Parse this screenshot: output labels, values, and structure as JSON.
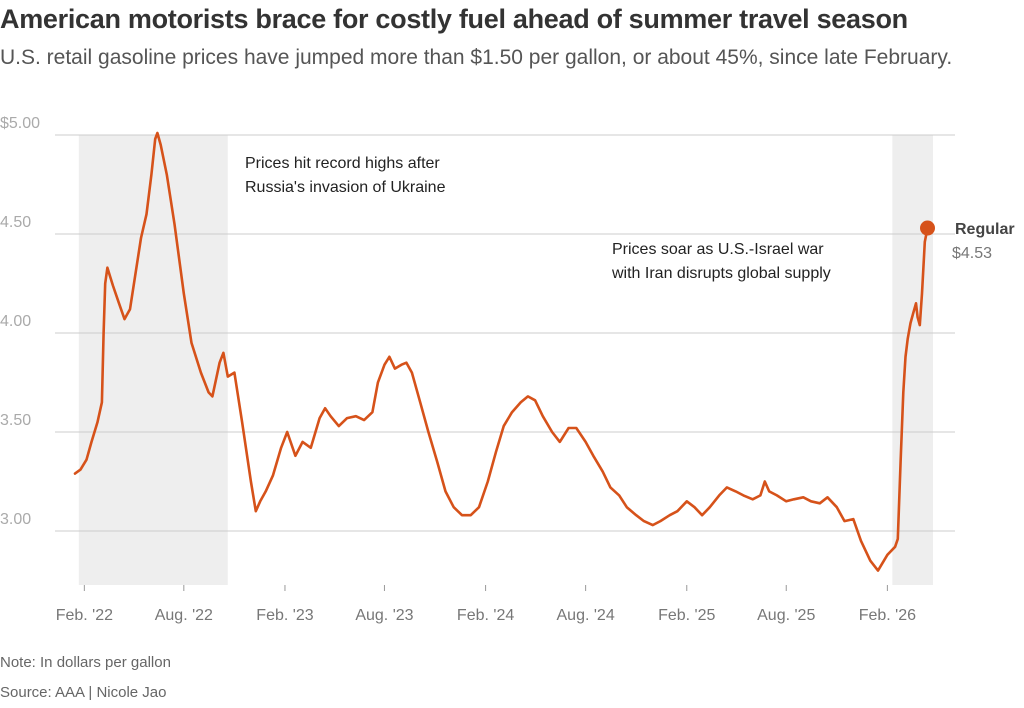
{
  "header": {
    "title": "American motorists brace for costly fuel ahead of summer travel season",
    "subtitle": "U.S. retail gasoline prices have jumped more than $1.50 per gallon, or about 45%, since late February."
  },
  "footer": {
    "note": "Note: In dollars per gallon",
    "source": "Source: AAA | Nicole Jao"
  },
  "colors": {
    "line": "#d6521a",
    "shade": "#eeeeee",
    "grid": "#cccccc"
  },
  "chart_data": {
    "type": "line",
    "title": "American motorists brace for costly fuel ahead of summer travel season",
    "ylabel": "",
    "xlabel": "",
    "unit": "dollars per gallon",
    "xlim": [
      "2022-01-15",
      "2026-04-25"
    ],
    "ylim": [
      2.8,
      5.0
    ],
    "yticks": [
      5.0,
      4.5,
      4.0,
      3.5,
      3.0
    ],
    "ytick_labels": [
      "$5.00",
      "4.50",
      "4.00",
      "3.50",
      "3.00"
    ],
    "xticks": [
      "2022-02-01",
      "2022-08-01",
      "2023-02-01",
      "2023-08-01",
      "2024-02-01",
      "2024-08-01",
      "2025-02-01",
      "2025-08-01",
      "2026-02-01"
    ],
    "xtick_labels": [
      "Feb. '22",
      "Aug. '22",
      "Feb. '23",
      "Aug. '23",
      "Feb. '24",
      "Aug. '24",
      "Feb. '25",
      "Aug. '25",
      "Feb. '26"
    ],
    "grid": true,
    "shaded_periods": [
      {
        "start": "2022-01-22",
        "end": "2022-10-20"
      },
      {
        "start": "2026-02-10",
        "end": "2026-04-25"
      }
    ],
    "annotations": [
      {
        "lines": [
          "Prices hit record highs after",
          "Russia's invasion of Ukraine"
        ]
      },
      {
        "lines": [
          "Prices soar as U.S.-Israel war",
          "with Iran disrupts global supply"
        ]
      }
    ],
    "series": [
      {
        "name": "Regular",
        "end_label": "$4.53",
        "x": [
          "2022-01-15",
          "2022-01-25",
          "2022-02-05",
          "2022-02-14",
          "2022-02-25",
          "2022-03-05",
          "2022-03-08",
          "2022-03-11",
          "2022-03-15",
          "2022-03-25",
          "2022-04-05",
          "2022-04-15",
          "2022-04-25",
          "2022-05-05",
          "2022-05-15",
          "2022-05-25",
          "2022-06-03",
          "2022-06-10",
          "2022-06-14",
          "2022-06-20",
          "2022-07-01",
          "2022-07-15",
          "2022-08-01",
          "2022-08-15",
          "2022-09-01",
          "2022-09-15",
          "2022-09-22",
          "2022-10-05",
          "2022-10-12",
          "2022-10-20",
          "2022-11-01",
          "2022-11-15",
          "2022-12-01",
          "2022-12-10",
          "2022-12-18",
          "2022-12-28",
          "2023-01-10",
          "2023-01-25",
          "2023-02-05",
          "2023-02-20",
          "2023-03-05",
          "2023-03-20",
          "2023-04-05",
          "2023-04-15",
          "2023-04-25",
          "2023-05-10",
          "2023-05-25",
          "2023-06-10",
          "2023-06-25",
          "2023-07-10",
          "2023-07-20",
          "2023-08-01",
          "2023-08-10",
          "2023-08-20",
          "2023-09-01",
          "2023-09-10",
          "2023-09-20",
          "2023-10-05",
          "2023-10-20",
          "2023-11-05",
          "2023-11-20",
          "2023-12-05",
          "2023-12-20",
          "2024-01-05",
          "2024-01-20",
          "2024-02-05",
          "2024-02-20",
          "2024-03-05",
          "2024-03-20",
          "2024-04-05",
          "2024-04-18",
          "2024-05-01",
          "2024-05-15",
          "2024-06-01",
          "2024-06-15",
          "2024-07-01",
          "2024-07-15",
          "2024-08-01",
          "2024-08-15",
          "2024-09-01",
          "2024-09-15",
          "2024-10-01",
          "2024-10-15",
          "2024-11-01",
          "2024-11-15",
          "2024-12-01",
          "2024-12-15",
          "2025-01-01",
          "2025-01-15",
          "2025-02-01",
          "2025-02-15",
          "2025-03-01",
          "2025-03-15",
          "2025-04-01",
          "2025-04-15",
          "2025-05-01",
          "2025-05-15",
          "2025-06-01",
          "2025-06-15",
          "2025-06-23",
          "2025-07-01",
          "2025-07-15",
          "2025-08-01",
          "2025-08-15",
          "2025-09-01",
          "2025-09-15",
          "2025-10-01",
          "2025-10-15",
          "2025-11-01",
          "2025-11-15",
          "2025-12-01",
          "2025-12-15",
          "2026-01-01",
          "2026-01-15",
          "2026-02-01",
          "2026-02-15",
          "2026-02-20",
          "2026-02-25",
          "2026-03-02",
          "2026-03-06",
          "2026-03-10",
          "2026-03-15",
          "2026-03-20",
          "2026-03-25",
          "2026-03-28",
          "2026-04-01",
          "2026-04-05",
          "2026-04-10",
          "2026-04-15"
        ],
        "y": [
          3.29,
          3.31,
          3.36,
          3.45,
          3.55,
          3.65,
          4.0,
          4.25,
          4.33,
          4.24,
          4.15,
          4.07,
          4.12,
          4.3,
          4.48,
          4.6,
          4.8,
          4.98,
          5.01,
          4.95,
          4.8,
          4.55,
          4.2,
          3.95,
          3.8,
          3.7,
          3.68,
          3.85,
          3.9,
          3.78,
          3.8,
          3.55,
          3.25,
          3.1,
          3.15,
          3.2,
          3.28,
          3.42,
          3.5,
          3.38,
          3.45,
          3.42,
          3.57,
          3.62,
          3.58,
          3.53,
          3.57,
          3.58,
          3.56,
          3.6,
          3.75,
          3.84,
          3.88,
          3.82,
          3.84,
          3.85,
          3.8,
          3.65,
          3.5,
          3.35,
          3.2,
          3.12,
          3.08,
          3.08,
          3.12,
          3.25,
          3.4,
          3.53,
          3.6,
          3.65,
          3.68,
          3.66,
          3.58,
          3.5,
          3.45,
          3.52,
          3.52,
          3.45,
          3.38,
          3.3,
          3.22,
          3.18,
          3.12,
          3.08,
          3.05,
          3.03,
          3.05,
          3.08,
          3.1,
          3.15,
          3.12,
          3.08,
          3.12,
          3.18,
          3.22,
          3.2,
          3.18,
          3.16,
          3.18,
          3.25,
          3.2,
          3.18,
          3.15,
          3.16,
          3.17,
          3.15,
          3.14,
          3.17,
          3.12,
          3.05,
          3.06,
          2.95,
          2.85,
          2.8,
          2.88,
          2.92,
          2.96,
          3.35,
          3.7,
          3.88,
          3.97,
          4.05,
          4.1,
          4.15,
          4.08,
          4.04,
          4.2,
          4.46,
          4.53
        ]
      }
    ]
  }
}
